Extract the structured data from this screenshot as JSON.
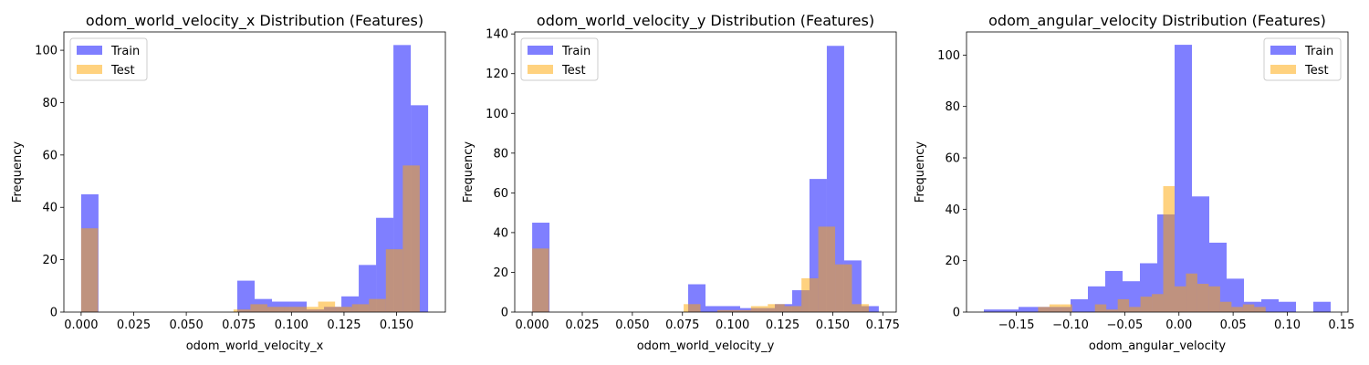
{
  "colors": {
    "train": "#0000ff",
    "test": "#ffa500"
  },
  "chart_data": [
    {
      "type": "bar",
      "title": "odom_world_velocity_x Distribution (Features)",
      "xlabel": "odom_world_velocity_x",
      "ylabel": "Frequency",
      "xlim": [
        -0.0082,
        0.1732
      ],
      "ylim": [
        0,
        107
      ],
      "xticks": [
        0.0,
        0.025,
        0.05,
        0.075,
        0.1,
        0.125,
        0.15
      ],
      "xtick_labels": [
        "0.000",
        "0.025",
        "0.050",
        "0.075",
        "0.100",
        "0.125",
        "0.150"
      ],
      "yticks": [
        0,
        20,
        40,
        60,
        80,
        100
      ],
      "legend": "top-left",
      "series": [
        {
          "name": "Train",
          "color": "#0000ff",
          "alpha": 0.5,
          "bin_edges": [
            0.0,
            0.00825,
            0.0165,
            0.02475,
            0.033,
            0.04125,
            0.0495,
            0.05775,
            0.066,
            0.07425,
            0.0825,
            0.09075,
            0.099,
            0.10725,
            0.1155,
            0.12375,
            0.132,
            0.14025,
            0.1485,
            0.15675,
            0.165
          ],
          "counts": [
            45,
            0,
            0,
            0,
            0,
            0,
            0,
            0,
            0,
            12,
            5,
            4,
            4,
            1,
            2,
            6,
            18,
            36,
            102,
            79
          ]
        },
        {
          "name": "Test",
          "color": "#ffa500",
          "alpha": 0.5,
          "bin_edges": [
            0.0,
            0.00805,
            0.0161,
            0.02415,
            0.0322,
            0.04025,
            0.0483,
            0.05635,
            0.0644,
            0.07245,
            0.0805,
            0.08855,
            0.0966,
            0.10465,
            0.1127,
            0.12075,
            0.1288,
            0.13685,
            0.1449,
            0.15295,
            0.161
          ],
          "counts": [
            32,
            0,
            0,
            0,
            0,
            0,
            0,
            0,
            0,
            1,
            3,
            2,
            2,
            2,
            4,
            2,
            3,
            5,
            24,
            56
          ]
        }
      ]
    },
    {
      "type": "bar",
      "title": "odom_world_velocity_y Distribution (Features)",
      "xlabel": "odom_world_velocity_y",
      "ylabel": "Frequency",
      "xlim": [
        -0.0087,
        0.1817
      ],
      "ylim": [
        0,
        141
      ],
      "xticks": [
        0.0,
        0.025,
        0.05,
        0.075,
        0.1,
        0.125,
        0.15,
        0.175
      ],
      "xtick_labels": [
        "0.000",
        "0.025",
        "0.050",
        "0.075",
        "0.100",
        "0.125",
        "0.150",
        "0.175"
      ],
      "yticks": [
        0,
        20,
        40,
        60,
        80,
        100,
        120,
        140
      ],
      "legend": "top-left",
      "series": [
        {
          "name": "Train",
          "color": "#0000ff",
          "alpha": 0.5,
          "bin_edges": [
            0.0,
            0.00865,
            0.0173,
            0.02595,
            0.0346,
            0.04325,
            0.0519,
            0.06055,
            0.0692,
            0.07785,
            0.0865,
            0.09515,
            0.1038,
            0.11245,
            0.1211,
            0.12975,
            0.1384,
            0.14705,
            0.1557,
            0.16435,
            0.173
          ],
          "counts": [
            45,
            0,
            0,
            0,
            0,
            0,
            0,
            0,
            0,
            14,
            3,
            3,
            2,
            2,
            4,
            11,
            67,
            134,
            26,
            3
          ]
        },
        {
          "name": "Test",
          "color": "#ffa500",
          "alpha": 0.5,
          "bin_edges": [
            0.0,
            0.0084,
            0.0168,
            0.0252,
            0.0336,
            0.042,
            0.0504,
            0.0588,
            0.0672,
            0.0756,
            0.084,
            0.0924,
            0.1008,
            0.1092,
            0.1176,
            0.126,
            0.1344,
            0.1428,
            0.1512,
            0.1596,
            0.168
          ],
          "counts": [
            32,
            0,
            0,
            0,
            0,
            0,
            0,
            0,
            0,
            4,
            0,
            1,
            1,
            3,
            4,
            3,
            17,
            43,
            24,
            4
          ]
        }
      ]
    },
    {
      "type": "bar",
      "title": "odom_angular_velocity Distribution (Features)",
      "xlabel": "odom_angular_velocity",
      "ylabel": "Frequency",
      "xlim": [
        -0.196,
        0.156
      ],
      "ylim": [
        0,
        109
      ],
      "xticks": [
        -0.15,
        -0.1,
        -0.05,
        0.0,
        0.05,
        0.1,
        0.15
      ],
      "xtick_labels": [
        "−0.15",
        "−0.10",
        "−0.05",
        "0.00",
        "0.05",
        "0.10",
        "0.15"
      ],
      "yticks": [
        0,
        20,
        40,
        60,
        80,
        100
      ],
      "legend": "top-right",
      "series": [
        {
          "name": "Train",
          "color": "#0000ff",
          "alpha": 0.5,
          "bin_edges": [
            -0.18,
            -0.164,
            -0.148,
            -0.132,
            -0.116,
            -0.1,
            -0.084,
            -0.068,
            -0.052,
            -0.036,
            -0.02,
            -0.004,
            0.012,
            0.028,
            0.044,
            0.06,
            0.076,
            0.092,
            0.108,
            0.124,
            0.14
          ],
          "counts": [
            1,
            1,
            2,
            2,
            2,
            5,
            10,
            16,
            12,
            19,
            38,
            104,
            45,
            27,
            13,
            4,
            5,
            4,
            0,
            4
          ]
        },
        {
          "name": "Test",
          "color": "#ffa500",
          "alpha": 0.5,
          "bin_edges": [
            -0.13,
            -0.1195,
            -0.109,
            -0.0985,
            -0.088,
            -0.0775,
            -0.067,
            -0.0565,
            -0.046,
            -0.0355,
            -0.025,
            -0.0145,
            -0.004,
            0.0065,
            0.017,
            0.0275,
            0.038,
            0.0485,
            0.059,
            0.0695,
            0.08
          ],
          "counts": [
            2,
            3,
            3,
            0,
            0,
            3,
            1,
            5,
            2,
            6,
            7,
            49,
            10,
            15,
            11,
            10,
            4,
            2,
            3,
            2
          ]
        }
      ]
    }
  ]
}
